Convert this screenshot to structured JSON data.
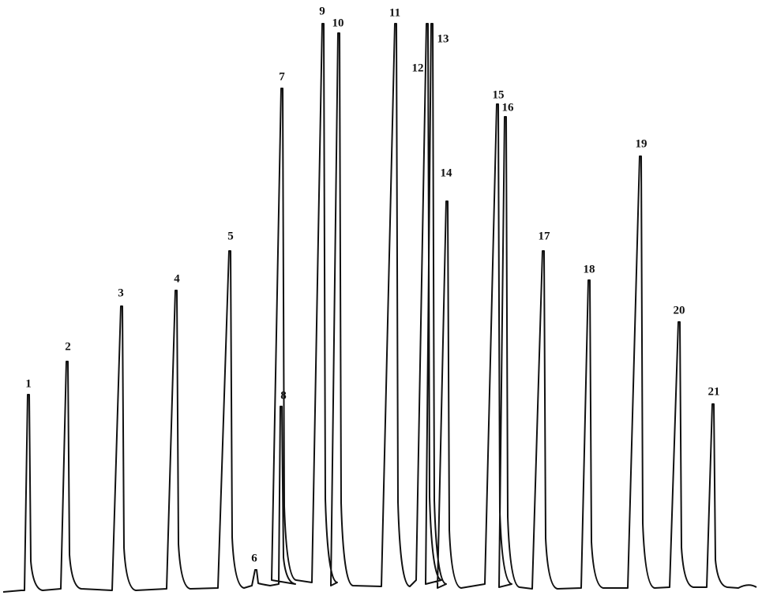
{
  "peaks": [
    {
      "label": "1"
    },
    {
      "label": "2"
    },
    {
      "label": "3"
    },
    {
      "label": "4"
    },
    {
      "label": "5"
    },
    {
      "label": "6"
    },
    {
      "label": "7"
    },
    {
      "label": "8"
    },
    {
      "label": "9"
    },
    {
      "label": "10"
    },
    {
      "label": "11"
    },
    {
      "label": "12"
    },
    {
      "label": "13"
    },
    {
      "label": "14"
    },
    {
      "label": "15"
    },
    {
      "label": "16"
    },
    {
      "label": "17"
    },
    {
      "label": "18"
    },
    {
      "label": "19"
    },
    {
      "label": "20"
    },
    {
      "label": "21"
    }
  ]
}
